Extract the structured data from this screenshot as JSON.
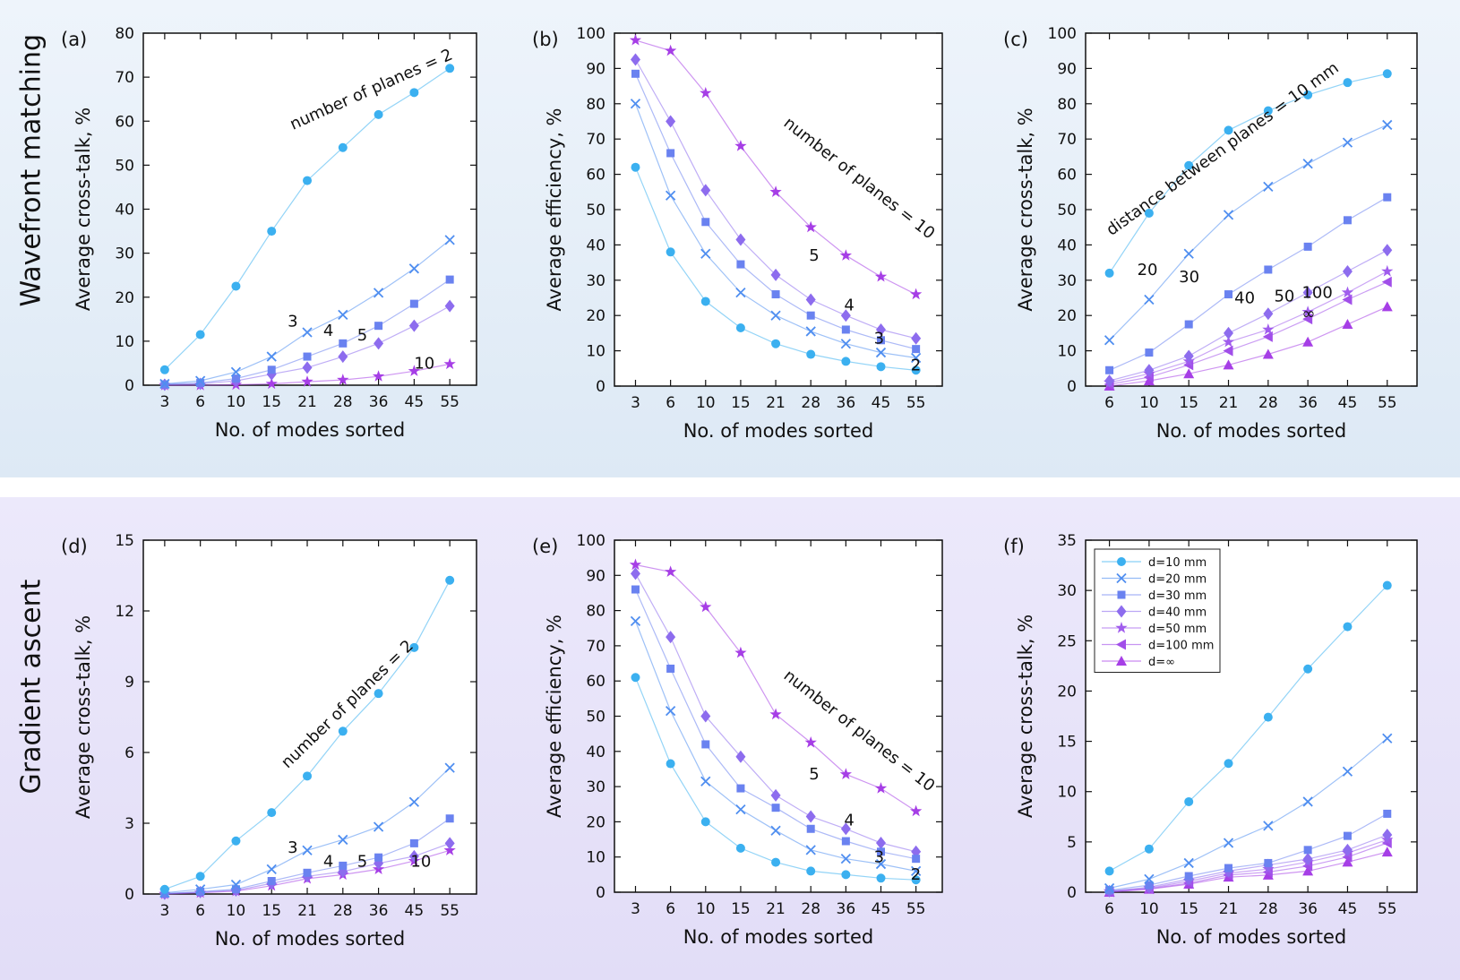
{
  "rows": {
    "top_label": "Wavefront matching",
    "bottom_label": "Gradient ascent"
  },
  "colors": {
    "series": [
      "#3bb0f0",
      "#4f8ef0",
      "#6a82f0",
      "#8d6cee",
      "#a05ced",
      "#a14ee9",
      "#a63ee6"
    ],
    "panel_bg": "#ffffff",
    "axis": "#111111"
  },
  "chart_data": [
    {
      "panel": "(a)",
      "type": "line",
      "xlabel": "No. of modes sorted",
      "ylabel": "Average cross-talk, %",
      "categories": [
        "3",
        "6",
        "10",
        "15",
        "21",
        "28",
        "36",
        "45",
        "55"
      ],
      "ylim": [
        0,
        80
      ],
      "yticks": [
        0,
        10,
        20,
        30,
        40,
        50,
        60,
        70,
        80
      ],
      "series": [
        {
          "name": "2",
          "marker": "circle",
          "values": [
            3.5,
            11.5,
            22.5,
            35,
            46.5,
            54,
            61.5,
            66.5,
            72
          ]
        },
        {
          "name": "3",
          "marker": "x",
          "values": [
            0.3,
            1,
            3,
            6.5,
            12,
            16,
            21,
            26.5,
            33
          ]
        },
        {
          "name": "4",
          "marker": "square",
          "values": [
            0.2,
            0.5,
            1.5,
            3.5,
            6.5,
            9.5,
            13.5,
            18.5,
            24
          ]
        },
        {
          "name": "5",
          "marker": "diamond",
          "values": [
            0.1,
            0.3,
            1,
            2.5,
            4,
            6.5,
            9.5,
            13.5,
            18
          ]
        },
        {
          "name": "10",
          "marker": "star",
          "values": [
            0,
            0,
            0.1,
            0.3,
            0.8,
            1.2,
            2,
            3.2,
            4.8
          ]
        }
      ],
      "annotations": [
        {
          "text": "number of planes = 2",
          "x": 3.6,
          "y": 58,
          "rotate": -24
        },
        {
          "text": "3",
          "x": 3.45,
          "y": 13.3
        },
        {
          "text": "4",
          "x": 4.45,
          "y": 11.2
        },
        {
          "text": "5",
          "x": 5.4,
          "y": 10.2
        },
        {
          "text": "10",
          "x": 7.0,
          "y": 3.8
        }
      ]
    },
    {
      "panel": "(b)",
      "type": "line",
      "xlabel": "No. of modes sorted",
      "ylabel": "Average efficiency, %",
      "categories": [
        "3",
        "6",
        "10",
        "15",
        "21",
        "28",
        "36",
        "45",
        "55"
      ],
      "ylim": [
        0,
        100
      ],
      "yticks": [
        0,
        10,
        20,
        30,
        40,
        50,
        60,
        70,
        80,
        90,
        100
      ],
      "series": [
        {
          "name": "2",
          "marker": "circle",
          "values": [
            62,
            38,
            24,
            16.5,
            12,
            9,
            7,
            5.5,
            4.5
          ]
        },
        {
          "name": "3",
          "marker": "x",
          "values": [
            80,
            54,
            37.5,
            26.5,
            20,
            15.5,
            12,
            9.5,
            8
          ]
        },
        {
          "name": "4",
          "marker": "square",
          "values": [
            88.5,
            66,
            46.5,
            34.5,
            26,
            20,
            16,
            13,
            10.5
          ]
        },
        {
          "name": "5",
          "marker": "diamond",
          "values": [
            92.5,
            75,
            55.5,
            41.5,
            31.5,
            24.5,
            20,
            16,
            13.5
          ]
        },
        {
          "name": "10",
          "marker": "star",
          "values": [
            98,
            95,
            83,
            68,
            55,
            45,
            37,
            31,
            26
          ]
        }
      ],
      "annotations": [
        {
          "text": "number of planes = 10",
          "x": 4.2,
          "y": 74,
          "rotate": 38
        },
        {
          "text": "5",
          "x": 4.95,
          "y": 35.5
        },
        {
          "text": "4",
          "x": 5.95,
          "y": 21.5
        },
        {
          "text": "3",
          "x": 6.8,
          "y": 12
        },
        {
          "text": "2",
          "x": 7.85,
          "y": 4.5
        }
      ]
    },
    {
      "panel": "(c)",
      "type": "line",
      "xlabel": "No. of modes sorted",
      "ylabel": "Average cross-talk, %",
      "categories": [
        "6",
        "10",
        "15",
        "21",
        "28",
        "36",
        "45",
        "55"
      ],
      "ylim": [
        0,
        100
      ],
      "yticks": [
        0,
        10,
        20,
        30,
        40,
        50,
        60,
        70,
        80,
        90,
        100
      ],
      "series": [
        {
          "name": "d=10 mm",
          "marker": "circle",
          "values": [
            32,
            49,
            62.5,
            72.5,
            78,
            82.5,
            86,
            88.5
          ]
        },
        {
          "name": "d=20 mm",
          "marker": "x",
          "values": [
            13,
            24.5,
            37.5,
            48.5,
            56.5,
            63,
            69,
            74
          ]
        },
        {
          "name": "d=30 mm",
          "marker": "square",
          "values": [
            4.5,
            9.5,
            17.5,
            26,
            33,
            39.5,
            47,
            53.5
          ]
        },
        {
          "name": "d=40 mm",
          "marker": "diamond",
          "values": [
            1.5,
            4.5,
            8.5,
            15,
            20.5,
            26.5,
            32.5,
            38.5
          ]
        },
        {
          "name": "d=50 mm",
          "marker": "star",
          "values": [
            1,
            3.5,
            7,
            12.5,
            16,
            21,
            26.5,
            32.5
          ]
        },
        {
          "name": "d=100 mm",
          "marker": "tri-left",
          "values": [
            0.5,
            2.5,
            6,
            10,
            14,
            19,
            24.5,
            29.5
          ]
        },
        {
          "name": "d=∞",
          "marker": "tri-up",
          "values": [
            0,
            1.5,
            3.5,
            6,
            9,
            12.5,
            17.5,
            22.5
          ]
        }
      ],
      "annotations": [
        {
          "text": "distance between planes = 10 mm",
          "x": 0.05,
          "y": 42.5,
          "rotate": -36
        },
        {
          "text": "20",
          "x": 0.7,
          "y": 31.5
        },
        {
          "text": "30",
          "x": 1.75,
          "y": 29.5
        },
        {
          "text": "40",
          "x": 3.15,
          "y": 23.5
        },
        {
          "text": "50",
          "x": 4.15,
          "y": 24
        },
        {
          "text": "100",
          "x": 4.85,
          "y": 25
        },
        {
          "text": "∞",
          "x": 4.85,
          "y": 19
        }
      ]
    },
    {
      "panel": "(d)",
      "type": "line",
      "xlabel": "No. of modes sorted",
      "ylabel": "Average cross-talk, %",
      "categories": [
        "3",
        "6",
        "10",
        "15",
        "21",
        "28",
        "36",
        "45",
        "55"
      ],
      "ylim": [
        0,
        15
      ],
      "yticks": [
        0,
        3,
        6,
        9,
        12,
        15
      ],
      "series": [
        {
          "name": "2",
          "marker": "circle",
          "values": [
            0.2,
            0.75,
            2.25,
            3.45,
            5,
            6.9,
            8.5,
            10.45,
            13.3
          ]
        },
        {
          "name": "3",
          "marker": "x",
          "values": [
            0.05,
            0.2,
            0.4,
            1.05,
            1.85,
            2.3,
            2.85,
            3.9,
            5.35
          ]
        },
        {
          "name": "4",
          "marker": "square",
          "values": [
            0.02,
            0.1,
            0.2,
            0.55,
            0.9,
            1.2,
            1.55,
            2.15,
            3.2
          ]
        },
        {
          "name": "5",
          "marker": "diamond",
          "values": [
            0.01,
            0.08,
            0.15,
            0.45,
            0.75,
            0.95,
            1.3,
            1.6,
            2.15
          ]
        },
        {
          "name": "10",
          "marker": "star",
          "values": [
            0,
            0.05,
            0.12,
            0.35,
            0.65,
            0.82,
            1.05,
            1.4,
            1.85
          ]
        }
      ],
      "annotations": [
        {
          "text": "number of planes = 2",
          "x": 3.45,
          "y": 5.3,
          "rotate": -44
        },
        {
          "text": "3",
          "x": 3.45,
          "y": 1.75
        },
        {
          "text": "4",
          "x": 4.45,
          "y": 1.15
        },
        {
          "text": "5",
          "x": 5.4,
          "y": 1.15
        },
        {
          "text": "10",
          "x": 6.9,
          "y": 1.15
        }
      ]
    },
    {
      "panel": "(e)",
      "type": "line",
      "xlabel": "No. of modes sorted",
      "ylabel": "Average efficiency, %",
      "categories": [
        "3",
        "6",
        "10",
        "15",
        "21",
        "28",
        "36",
        "45",
        "55"
      ],
      "ylim": [
        0,
        100
      ],
      "yticks": [
        0,
        10,
        20,
        30,
        40,
        50,
        60,
        70,
        80,
        90,
        100
      ],
      "series": [
        {
          "name": "2",
          "marker": "circle",
          "values": [
            61,
            36.5,
            20,
            12.5,
            8.5,
            6,
            5,
            4,
            3.5
          ]
        },
        {
          "name": "3",
          "marker": "x",
          "values": [
            77,
            51.5,
            31.5,
            23.5,
            17.5,
            12,
            9.5,
            8,
            6
          ]
        },
        {
          "name": "4",
          "marker": "square",
          "values": [
            86,
            63.5,
            42,
            29.5,
            24,
            18,
            14.5,
            11.5,
            9.5
          ]
        },
        {
          "name": "5",
          "marker": "diamond",
          "values": [
            90.5,
            72.5,
            50,
            38.5,
            27.5,
            21.5,
            18,
            14,
            11.5
          ]
        },
        {
          "name": "10",
          "marker": "star",
          "values": [
            93,
            91,
            81,
            68,
            50.5,
            42.5,
            33.5,
            29.5,
            23
          ]
        }
      ],
      "annotations": [
        {
          "text": "number of planes = 10",
          "x": 4.2,
          "y": 61,
          "rotate": 38
        },
        {
          "text": "5",
          "x": 4.95,
          "y": 32
        },
        {
          "text": "4",
          "x": 5.95,
          "y": 19
        },
        {
          "text": "3",
          "x": 6.8,
          "y": 8.5
        },
        {
          "text": "2",
          "x": 7.85,
          "y": 3.5
        }
      ]
    },
    {
      "panel": "(f)",
      "type": "line",
      "xlabel": "No. of modes sorted",
      "ylabel": "Average cross-talk, %",
      "categories": [
        "6",
        "10",
        "15",
        "21",
        "28",
        "36",
        "45",
        "55"
      ],
      "ylim": [
        0,
        35
      ],
      "yticks": [
        0,
        5,
        10,
        15,
        20,
        25,
        30,
        35
      ],
      "legend": {
        "position": "top-left",
        "entries": [
          "d=10 mm",
          "d=20 mm",
          "d=30 mm",
          "d=40 mm",
          "d=50 mm",
          "d=100 mm",
          "d=∞"
        ]
      },
      "series": [
        {
          "name": "d=10 mm",
          "marker": "circle",
          "values": [
            2.1,
            4.3,
            9,
            12.8,
            17.4,
            22.2,
            26.4,
            30.5
          ]
        },
        {
          "name": "d=20 mm",
          "marker": "x",
          "values": [
            0.4,
            1.3,
            2.9,
            4.9,
            6.6,
            9,
            12,
            15.3
          ]
        },
        {
          "name": "d=30 mm",
          "marker": "square",
          "values": [
            0.2,
            0.7,
            1.6,
            2.4,
            2.9,
            4.2,
            5.6,
            7.8
          ]
        },
        {
          "name": "d=40 mm",
          "marker": "diamond",
          "values": [
            0.1,
            0.5,
            1.3,
            2.1,
            2.7,
            3.3,
            4.2,
            5.7
          ]
        },
        {
          "name": "d=50 mm",
          "marker": "star",
          "values": [
            0.1,
            0.4,
            1.1,
            1.9,
            2.3,
            3,
            3.9,
            5.2
          ]
        },
        {
          "name": "d=100 mm",
          "marker": "tri-left",
          "values": [
            0.05,
            0.35,
            0.9,
            1.7,
            2,
            2.6,
            3.5,
            4.9
          ]
        },
        {
          "name": "d=∞",
          "marker": "tri-up",
          "values": [
            0,
            0.3,
            0.8,
            1.5,
            1.7,
            2.1,
            3,
            4
          ]
        }
      ],
      "annotations": []
    }
  ]
}
